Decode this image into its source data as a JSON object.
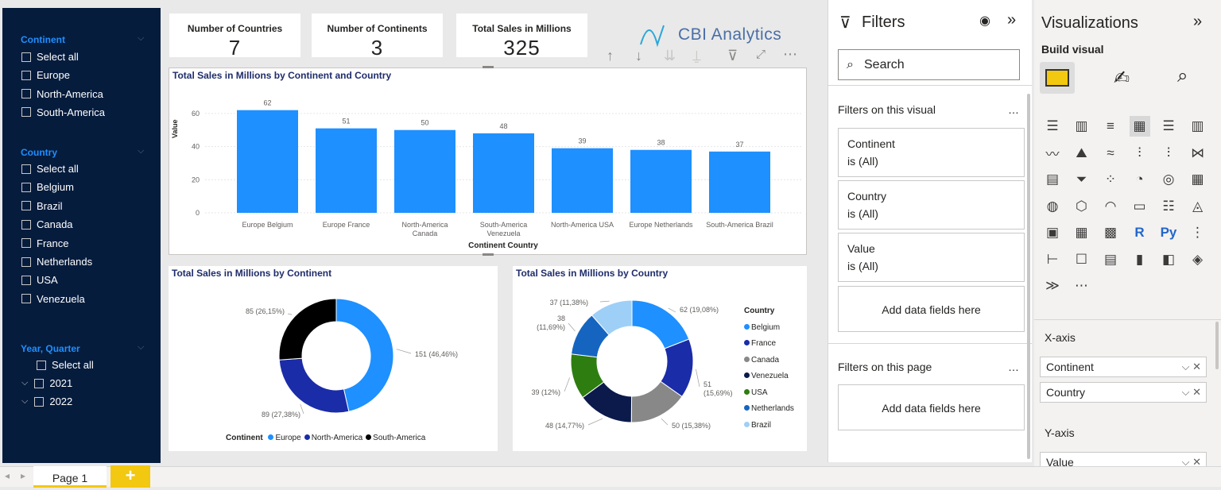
{
  "slicer": {
    "continent": {
      "title": "Continent",
      "items": [
        "Select all",
        "Europe",
        "North-America",
        "South-America"
      ]
    },
    "country": {
      "title": "Country",
      "items": [
        "Select all",
        "Belgium",
        "Brazil",
        "Canada",
        "France",
        "Netherlands",
        "USA",
        "Venezuela"
      ]
    },
    "year": {
      "title": "Year, Quarter",
      "items": [
        "Select all",
        "2021",
        "2022"
      ]
    }
  },
  "cards": [
    {
      "title": "Number of Countries",
      "value": "7"
    },
    {
      "title": "Number of Continents",
      "value": "3"
    },
    {
      "title": "Total Sales in Millions",
      "value": "325"
    }
  ],
  "logo": {
    "text": "CBI Analytics"
  },
  "bar_chart": {
    "title": "Total Sales in Millions by Continent and Country",
    "xlabel": "Continent Country",
    "ylabel": "Value"
  },
  "donut1": {
    "title": "Total Sales in Millions by Continent",
    "legend_title": "Continent"
  },
  "donut2": {
    "title": "Total Sales in Millions by Country",
    "legend_title": "Country"
  },
  "chart_data": [
    {
      "type": "bar",
      "title": "Total Sales in Millions by Continent and Country",
      "categories": [
        "Europe Belgium",
        "Europe France",
        "North-America Canada",
        "South-America Venezuela",
        "North-America USA",
        "Europe Netherlands",
        "South-America Brazil"
      ],
      "cat_lines": [
        [
          "Europe Belgium"
        ],
        [
          "Europe France"
        ],
        [
          "North-America",
          "Canada"
        ],
        [
          "South-America",
          "Venezuela"
        ],
        [
          "North-America USA"
        ],
        [
          "Europe Netherlands"
        ],
        [
          "South-America Brazil"
        ]
      ],
      "values": [
        62,
        51,
        50,
        48,
        39,
        38,
        37
      ],
      "ylim": [
        0,
        70
      ],
      "yticks": [
        0,
        20,
        40,
        60
      ],
      "xlabel": "Continent Country",
      "ylabel": "Value"
    },
    {
      "type": "pie",
      "title": "Total Sales in Millions by Continent",
      "labels": [
        "Europe",
        "North-America",
        "South-America"
      ],
      "values": [
        151,
        89,
        85
      ],
      "data_labels": [
        "151 (46,46%)",
        "89 (27,38%)",
        "85 (26,15%)"
      ],
      "colors": [
        "#1e90ff",
        "#1a2ca8",
        "#000000"
      ]
    },
    {
      "type": "pie",
      "title": "Total Sales in Millions by Country",
      "labels": [
        "Belgium",
        "France",
        "Canada",
        "Venezuela",
        "USA",
        "Netherlands",
        "Brazil"
      ],
      "values": [
        62,
        51,
        50,
        48,
        39,
        38,
        37
      ],
      "data_labels": [
        "62 (19,08%)",
        "51 (15,69%)",
        "50 (15,38%)",
        "48 (14,77%)",
        "39 (12%)",
        "38 (11,69%)",
        "37 (11,38%)"
      ],
      "colors": [
        "#1e90ff",
        "#1a2ca8",
        "#888888",
        "#0b1a4a",
        "#2e7d10",
        "#1565c0",
        "#9ecff7"
      ]
    }
  ],
  "filters": {
    "title": "Filters",
    "search": "Search",
    "on_visual": "Filters on this visual",
    "on_page": "Filters on this page",
    "add": "Add data fields here",
    "more": "…",
    "cards": [
      {
        "name": "Continent",
        "state": "is (All)"
      },
      {
        "name": "Country",
        "state": "is (All)"
      },
      {
        "name": "Value",
        "state": "is (All)"
      }
    ]
  },
  "viz": {
    "title": "Visualizations",
    "build": "Build visual",
    "xaxis": "X-axis",
    "yaxis": "Y-axis",
    "x_fields": [
      "Continent",
      "Country"
    ],
    "y_fields": [
      "Value"
    ]
  },
  "tabs": {
    "page": "Page 1",
    "add": "+"
  }
}
